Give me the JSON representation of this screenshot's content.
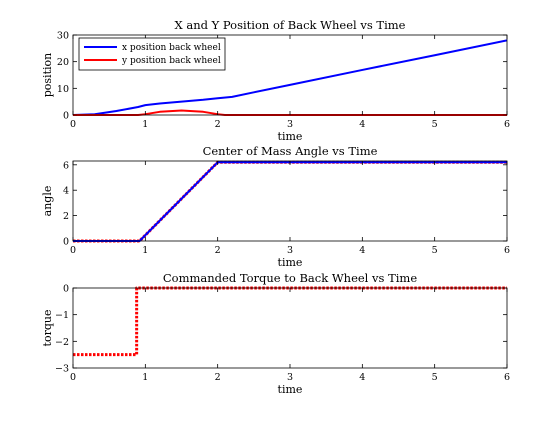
{
  "chart_data": [
    {
      "type": "line",
      "title": "X and Y Position of Back Wheel vs Time",
      "xlabel": "time",
      "ylabel": "position",
      "xlim": [
        0,
        6
      ],
      "ylim": [
        0,
        30
      ],
      "xticks": [
        0,
        1,
        2,
        3,
        4,
        5,
        6
      ],
      "yticks": [
        0,
        10,
        20,
        30
      ],
      "legend": "top-left",
      "series": [
        {
          "name": "x position back wheel",
          "color": "#0000ff",
          "style": "solid",
          "x": [
            0,
            0.3,
            0.6,
            0.9,
            1.0,
            1.2,
            1.5,
            1.8,
            2.0,
            2.2,
            2.5,
            3,
            4,
            5,
            6
          ],
          "y": [
            0,
            0.3,
            1.5,
            3.0,
            3.7,
            4.3,
            5.0,
            5.7,
            6.3,
            6.8,
            8.5,
            11.3,
            16.9,
            22.4,
            28.0
          ]
        },
        {
          "name": "y position back wheel",
          "color": "#ff0000",
          "style": "solid",
          "x": [
            0,
            0.9,
            1.0,
            1.2,
            1.5,
            1.8,
            2.0,
            2.1,
            6
          ],
          "y": [
            0,
            0,
            0.3,
            1.2,
            1.7,
            1.2,
            0.3,
            0,
            0
          ]
        }
      ]
    },
    {
      "type": "line",
      "title": "Center of Mass Angle vs Time",
      "xlabel": "time",
      "ylabel": "angle",
      "xlim": [
        0,
        6
      ],
      "ylim": [
        0,
        6.3
      ],
      "xticks": [
        0,
        1,
        2,
        3,
        4,
        5,
        6
      ],
      "yticks": [
        0,
        2,
        4,
        6
      ],
      "series": [
        {
          "color": "#ff0000",
          "style": "dotted",
          "x": [
            0,
            0.92,
            2.0,
            6
          ],
          "y": [
            0,
            0,
            6.2,
            6.2
          ]
        },
        {
          "color": "#0000ff",
          "style": "solid",
          "x": [
            0,
            0.92,
            2.0,
            6
          ],
          "y": [
            0,
            0,
            6.2,
            6.2
          ]
        }
      ]
    },
    {
      "type": "line",
      "title": "Commanded Torque to Back Wheel vs Time",
      "xlabel": "time",
      "ylabel": "torque",
      "xlim": [
        0,
        6
      ],
      "ylim": [
        -3,
        0
      ],
      "xticks": [
        0,
        1,
        2,
        3,
        4,
        5,
        6
      ],
      "yticks": [
        -3,
        -2,
        -1,
        0
      ],
      "series": [
        {
          "color": "#ff0000",
          "style": "dotted",
          "x": [
            0,
            0.88,
            0.88,
            6
          ],
          "y": [
            -2.5,
            -2.5,
            0,
            0
          ]
        }
      ]
    }
  ]
}
